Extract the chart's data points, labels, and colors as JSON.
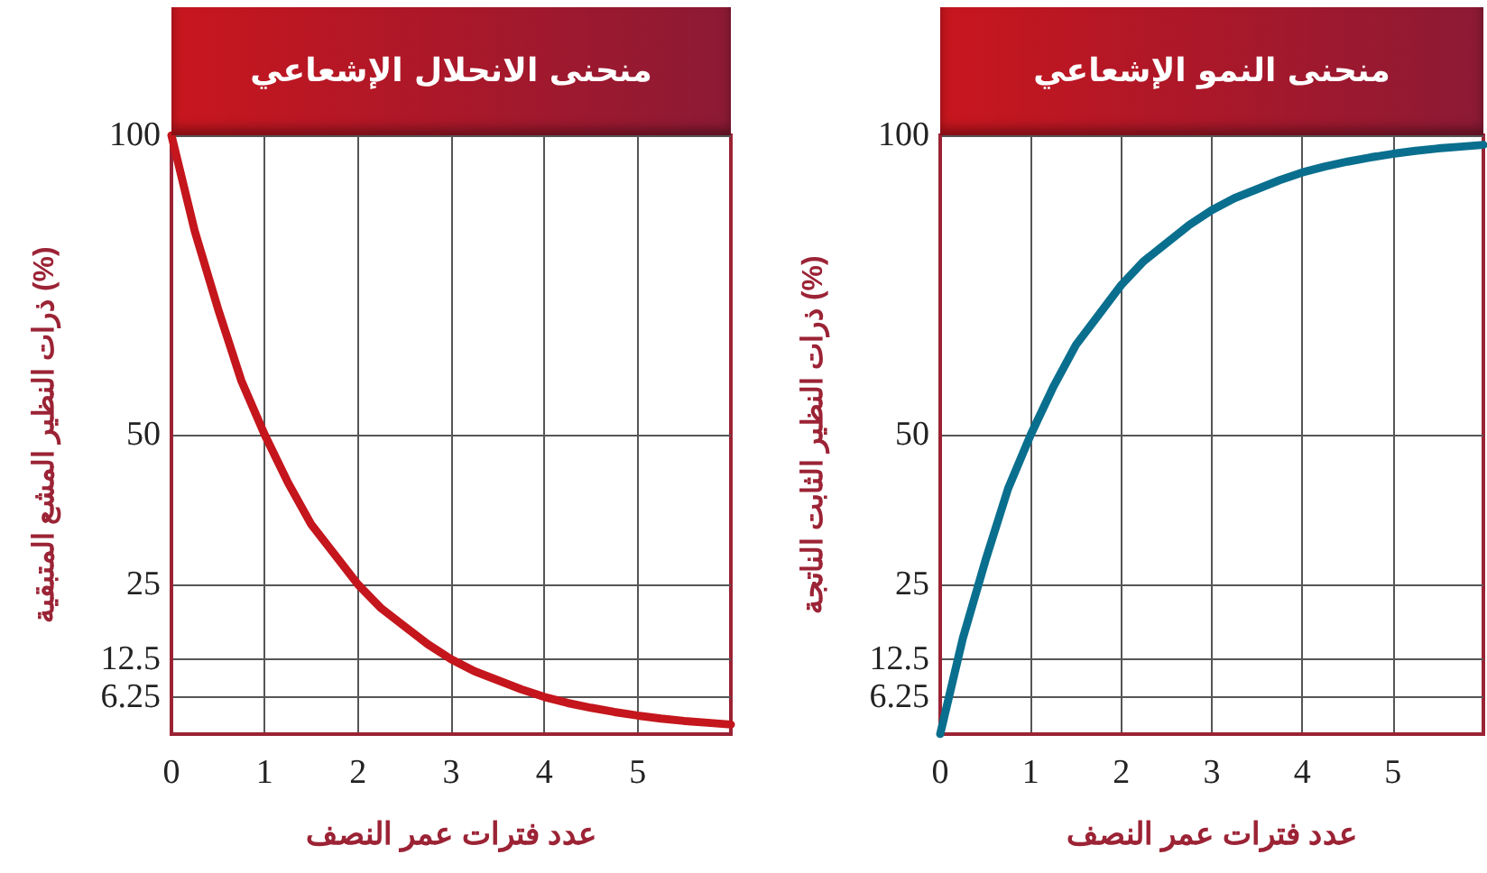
{
  "chart_data": [
    {
      "type": "line",
      "title": "منحنى الانحلال الإشعاعي",
      "xlabel": "عدد فترات عمر النصف",
      "ylabel": "ذرات النظير المشع المتبقية (%)",
      "x": [
        0,
        0.25,
        0.5,
        0.75,
        1,
        1.25,
        1.5,
        1.75,
        2,
        2.25,
        2.5,
        2.75,
        3,
        3.25,
        3.5,
        3.75,
        4,
        4.25,
        4.5,
        4.75,
        5,
        5.25,
        5.5,
        5.75,
        6
      ],
      "series": [
        {
          "color": "#c4161c",
          "values": [
            100,
            84,
            71,
            59,
            50,
            42,
            35,
            30,
            25,
            21,
            18,
            15,
            12.5,
            10.5,
            9,
            7.5,
            6.2,
            5.2,
            4.4,
            3.7,
            3.1,
            2.6,
            2.2,
            1.9,
            1.6
          ]
        }
      ],
      "xlim": [
        0,
        6
      ],
      "xticks": [
        0,
        1,
        2,
        3,
        4,
        5
      ],
      "ylim": [
        0,
        100
      ],
      "yticks": [
        6.25,
        12.5,
        25,
        50,
        100
      ],
      "grid": true,
      "marker": "none",
      "line_style": "solid"
    },
    {
      "type": "line",
      "title": "منحنى النمو الإشعاعي",
      "xlabel": "عدد فترات عمر النصف",
      "ylabel": "ذرات النظير الثابت الناتجة (%)",
      "x": [
        0,
        0.25,
        0.5,
        0.75,
        1,
        1.25,
        1.5,
        1.75,
        2,
        2.25,
        2.5,
        2.75,
        3,
        3.25,
        3.5,
        3.75,
        4,
        4.25,
        4.5,
        4.75,
        5,
        5.25,
        5.5,
        5.75,
        6
      ],
      "series": [
        {
          "color": "#0a6f8e",
          "values": [
            0,
            16,
            29,
            41,
            50,
            58,
            65,
            70,
            75,
            79,
            82,
            85,
            87.5,
            89.5,
            91,
            92.5,
            93.8,
            94.8,
            95.6,
            96.3,
            96.9,
            97.4,
            97.8,
            98.1,
            98.4
          ]
        }
      ],
      "xlim": [
        0,
        6
      ],
      "xticks": [
        0,
        1,
        2,
        3,
        4,
        5
      ],
      "ylim": [
        0,
        100
      ],
      "yticks": [
        6.25,
        12.5,
        25,
        50,
        100
      ],
      "grid": true,
      "marker": "none",
      "line_style": "solid"
    }
  ]
}
